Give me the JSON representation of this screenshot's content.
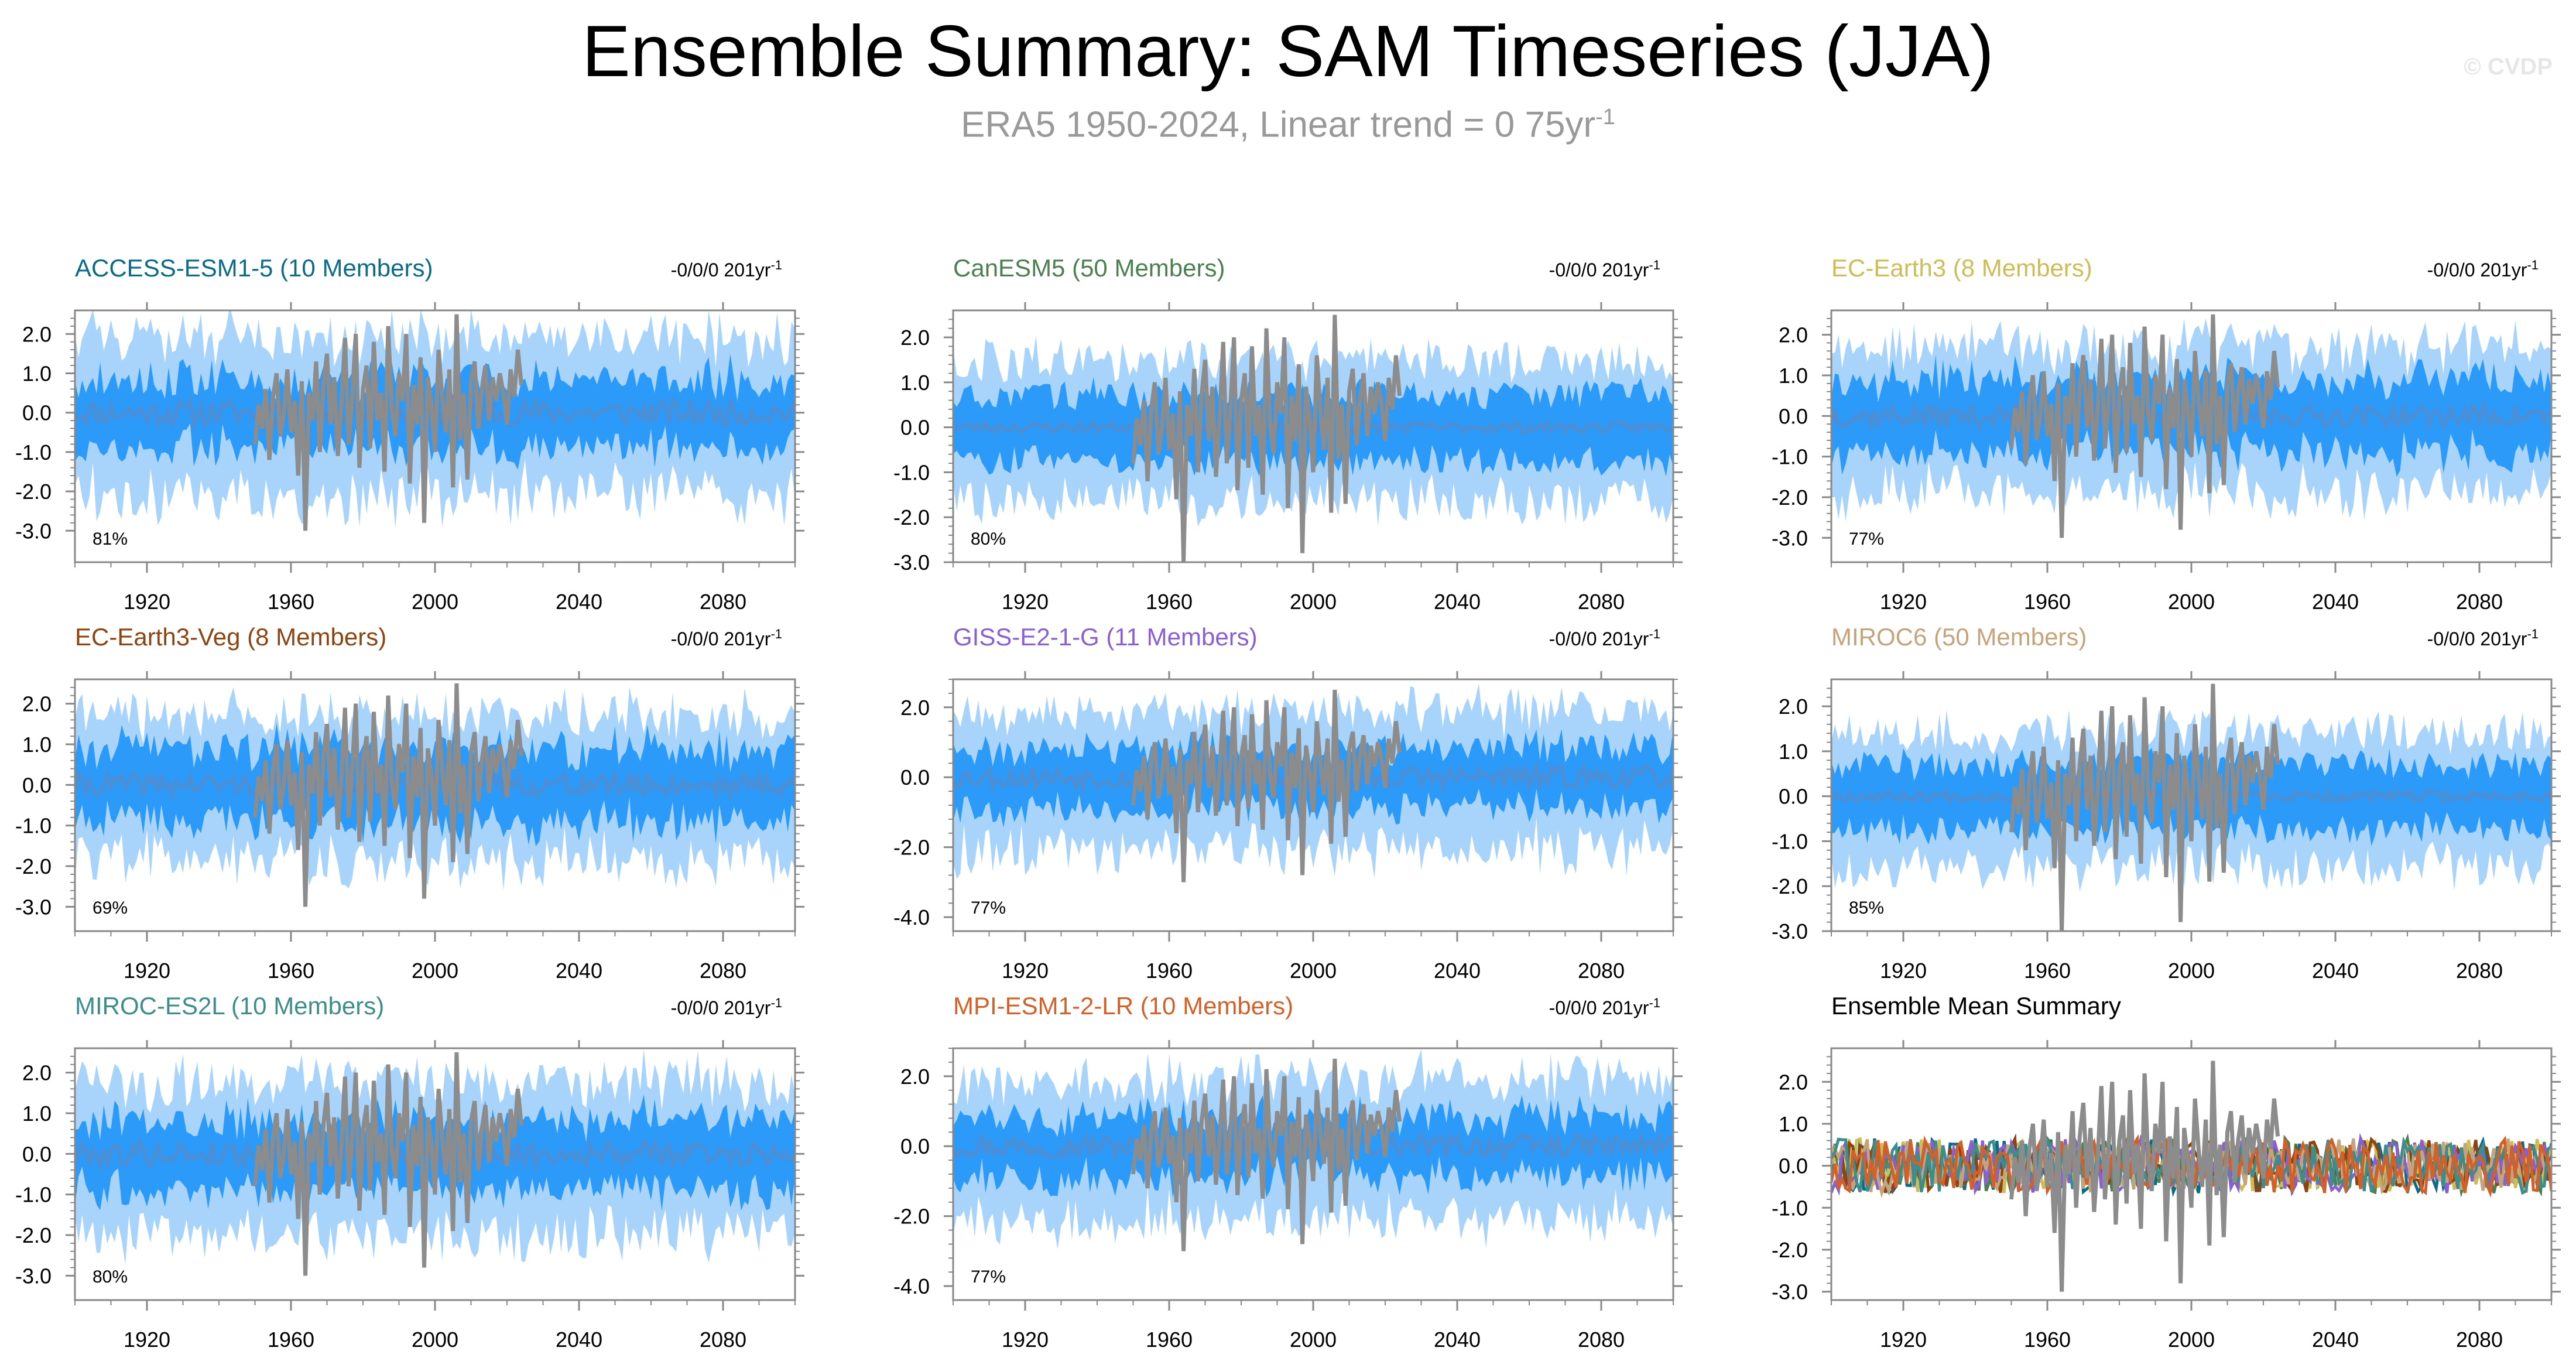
{
  "title": "Ensemble Summary: SAM Timeseries (JJA)",
  "subtitle": {
    "prefix": "ERA5 1950-2024, Linear trend = 0 75yr",
    "exponent": "-1"
  },
  "watermark": "© CVDP",
  "colors": {
    "outer_band": "#a8d4fb",
    "inner_band": "#2b9af8",
    "ensemble_mean_line": "#4a90d9",
    "observed_line": "#8c8c8c",
    "axis": "#888888"
  },
  "chart_data": [
    {
      "type": "line",
      "title": "ACCESS-ESM1-5 (10 Members)",
      "title_color": "#0c6b86",
      "trend_label": "-0/0/0 201yr",
      "trend_exponent": "-1",
      "percent_label": "81%",
      "x_range": [
        1900,
        2100
      ],
      "x_ticks": [
        "1920",
        "1960",
        "2000",
        "2040",
        "2080"
      ],
      "x_tick_values": [
        1920,
        1960,
        2000,
        2040,
        2080
      ],
      "ylim": [
        -3.8,
        2.6
      ],
      "y_ticks": [
        "2.0",
        "1.0",
        "0.0",
        "-1.0",
        "-2.0",
        "-3.0"
      ],
      "y_tick_values": [
        2.0,
        1.0,
        0.0,
        -1.0,
        -2.0,
        -3.0
      ],
      "outer_half_width": 1.9,
      "inner_half_width": 0.85,
      "noise_amplitude": 0.7,
      "seed": 11,
      "series": [
        "Ensemble 10-90% range",
        "Ensemble 25-75% range",
        "Ensemble mean",
        "ERA5"
      ]
    },
    {
      "type": "line",
      "title": "CanESM5 (50 Members)",
      "title_color": "#4d8050",
      "trend_label": "-0/0/0 201yr",
      "trend_exponent": "-1",
      "percent_label": "80%",
      "x_range": [
        1900,
        2100
      ],
      "x_ticks": [
        "1920",
        "1960",
        "2000",
        "2040",
        "2080"
      ],
      "x_tick_values": [
        1920,
        1960,
        2000,
        2040,
        2080
      ],
      "ylim": [
        -3.0,
        2.6
      ],
      "y_ticks": [
        "2.0",
        "1.0",
        "0.0",
        "-1.0",
        "-2.0",
        "-3.0"
      ],
      "y_tick_values": [
        2.0,
        1.0,
        0.0,
        -1.0,
        -2.0,
        -3.0
      ],
      "outer_half_width": 1.5,
      "inner_half_width": 0.75,
      "noise_amplitude": 0.25,
      "seed": 23,
      "series": [
        "Ensemble 10-90% range",
        "Ensemble 25-75% range",
        "Ensemble mean",
        "ERA5"
      ]
    },
    {
      "type": "line",
      "title": "EC-Earth3 (8 Members)",
      "title_color": "#cdbd58",
      "trend_label": "-0/0/0 201yr",
      "trend_exponent": "-1",
      "percent_label": "77%",
      "x_range": [
        1900,
        2100
      ],
      "x_ticks": [
        "1920",
        "1960",
        "2000",
        "2040",
        "2080"
      ],
      "x_tick_values": [
        1920,
        1960,
        2000,
        2040,
        2080
      ],
      "ylim": [
        -3.6,
        2.6
      ],
      "y_ticks": [
        "2.0",
        "1.0",
        "0.0",
        "-1.0",
        "-2.0",
        "-3.0"
      ],
      "y_tick_values": [
        2.0,
        1.0,
        0.0,
        -1.0,
        -2.0,
        -3.0
      ],
      "outer_half_width": 1.7,
      "inner_half_width": 0.9,
      "noise_amplitude": 0.6,
      "seed": 37,
      "series": [
        "Ensemble 10-90% range",
        "Ensemble 25-75% range",
        "Ensemble mean",
        "ERA5"
      ]
    },
    {
      "type": "line",
      "title": "EC-Earth3-Veg (8 Members)",
      "title_color": "#8b4513",
      "trend_label": "-0/0/0 201yr",
      "trend_exponent": "-1",
      "percent_label": "69%",
      "x_range": [
        1900,
        2100
      ],
      "x_ticks": [
        "1920",
        "1960",
        "2000",
        "2040",
        "2080"
      ],
      "x_tick_values": [
        1920,
        1960,
        2000,
        2040,
        2080
      ],
      "ylim": [
        -3.6,
        2.6
      ],
      "y_ticks": [
        "2.0",
        "1.0",
        "0.0",
        "-1.0",
        "-2.0",
        "-3.0"
      ],
      "y_tick_values": [
        2.0,
        1.0,
        0.0,
        -1.0,
        -2.0,
        -3.0
      ],
      "outer_half_width": 1.7,
      "inner_half_width": 0.9,
      "noise_amplitude": 0.6,
      "seed": 41,
      "series": [
        "Ensemble 10-90% range",
        "Ensemble 25-75% range",
        "Ensemble mean",
        "ERA5"
      ]
    },
    {
      "type": "line",
      "title": "GISS-E2-1-G (11 Members)",
      "title_color": "#8a5fd0",
      "trend_label": "-0/0/0 201yr",
      "trend_exponent": "-1",
      "percent_label": "77%",
      "x_range": [
        1900,
        2100
      ],
      "x_ticks": [
        "1920",
        "1960",
        "2000",
        "2040",
        "2080"
      ],
      "x_tick_values": [
        1920,
        1960,
        2000,
        2040,
        2080
      ],
      "ylim": [
        -4.4,
        2.8
      ],
      "y_ticks": [
        "2.0",
        "0.0",
        "-2.0",
        "-4.0"
      ],
      "y_tick_values": [
        2.0,
        0.0,
        -2.0,
        -4.0
      ],
      "outer_half_width": 1.9,
      "inner_half_width": 0.85,
      "noise_amplitude": 0.7,
      "seed": 53,
      "series": [
        "Ensemble 10-90% range",
        "Ensemble 25-75% range",
        "Ensemble mean",
        "ERA5"
      ]
    },
    {
      "type": "line",
      "title": "MIROC6 (50 Members)",
      "title_color": "#c4a47c",
      "trend_label": "-0/0/0 201yr",
      "trend_exponent": "-1",
      "percent_label": "85%",
      "x_range": [
        1900,
        2100
      ],
      "x_ticks": [
        "1920",
        "1960",
        "2000",
        "2040",
        "2080"
      ],
      "x_tick_values": [
        1920,
        1960,
        2000,
        2040,
        2080
      ],
      "ylim": [
        -3.0,
        2.6
      ],
      "y_ticks": [
        "2.0",
        "1.0",
        "0.0",
        "-1.0",
        "-2.0",
        "-3.0"
      ],
      "y_tick_values": [
        2.0,
        1.0,
        0.0,
        -1.0,
        -2.0,
        -3.0
      ],
      "outer_half_width": 1.45,
      "inner_half_width": 0.72,
      "noise_amplitude": 0.25,
      "seed": 67,
      "series": [
        "Ensemble 10-90% range",
        "Ensemble 25-75% range",
        "Ensemble mean",
        "ERA5"
      ]
    },
    {
      "type": "line",
      "title": "MIROC-ES2L (10 Members)",
      "title_color": "#3f8c8c",
      "trend_label": "-0/0/0 201yr",
      "trend_exponent": "-1",
      "percent_label": "80%",
      "x_range": [
        1900,
        2100
      ],
      "x_ticks": [
        "1920",
        "1960",
        "2000",
        "2040",
        "2080"
      ],
      "x_tick_values": [
        1920,
        1960,
        2000,
        2040,
        2080
      ],
      "ylim": [
        -3.6,
        2.6
      ],
      "y_ticks": [
        "2.0",
        "1.0",
        "0.0",
        "-1.0",
        "-2.0",
        "-3.0"
      ],
      "y_tick_values": [
        2.0,
        1.0,
        0.0,
        -1.0,
        -2.0,
        -3.0
      ],
      "outer_half_width": 1.8,
      "inner_half_width": 0.85,
      "noise_amplitude": 0.65,
      "seed": 79,
      "series": [
        "Ensemble 10-90% range",
        "Ensemble 25-75% range",
        "Ensemble mean",
        "ERA5"
      ]
    },
    {
      "type": "line",
      "title": "MPI-ESM1-2-LR (10 Members)",
      "title_color": "#d2602a",
      "trend_label": "-0/0/0 201yr",
      "trend_exponent": "-1",
      "percent_label": "77%",
      "x_range": [
        1900,
        2100
      ],
      "x_ticks": [
        "1920",
        "1960",
        "2000",
        "2040",
        "2080"
      ],
      "x_tick_values": [
        1920,
        1960,
        2000,
        2040,
        2080
      ],
      "ylim": [
        -4.4,
        2.8
      ],
      "y_ticks": [
        "2.0",
        "0.0",
        "-2.0",
        "-4.0"
      ],
      "y_tick_values": [
        2.0,
        0.0,
        -2.0,
        -4.0
      ],
      "outer_half_width": 1.9,
      "inner_half_width": 0.85,
      "noise_amplitude": 0.7,
      "seed": 97,
      "series": [
        "Ensemble 10-90% range",
        "Ensemble 25-75% range",
        "Ensemble mean",
        "ERA5"
      ]
    },
    {
      "type": "line",
      "title": "Ensemble Mean Summary",
      "title_color": "#000000",
      "trend_label": "",
      "trend_exponent": "",
      "percent_label": "",
      "x_range": [
        1900,
        2100
      ],
      "x_ticks": [
        "1920",
        "1960",
        "2000",
        "2040",
        "2080"
      ],
      "x_tick_values": [
        1920,
        1960,
        2000,
        2040,
        2080
      ],
      "ylim": [
        -3.2,
        2.8
      ],
      "y_ticks": [
        "2.0",
        "1.0",
        "0.0",
        "-1.0",
        "-2.0",
        "-3.0"
      ],
      "y_tick_values": [
        2.0,
        1.0,
        0.0,
        -1.0,
        -2.0,
        -3.0
      ],
      "summary": true,
      "seed": 113,
      "series": [
        {
          "name": "ACCESS-ESM1-5",
          "color": "#0c6b86"
        },
        {
          "name": "CanESM5",
          "color": "#4d8050"
        },
        {
          "name": "EC-Earth3",
          "color": "#cdbd58"
        },
        {
          "name": "EC-Earth3-Veg",
          "color": "#8b4513"
        },
        {
          "name": "GISS-E2-1-G",
          "color": "#8a5fd0"
        },
        {
          "name": "MIROC6",
          "color": "#c4a47c"
        },
        {
          "name": "MIROC-ES2L",
          "color": "#3f8c8c"
        },
        {
          "name": "MPI-ESM1-2-LR",
          "color": "#d2602a"
        },
        {
          "name": "ERA5",
          "color": "#8c8c8c"
        }
      ]
    }
  ],
  "era5_observed": {
    "start_year": 1950,
    "values": [
      -0.8,
      0.2,
      -0.4,
      0.6,
      -1.2,
      0.4,
      1.0,
      -0.6,
      0.0,
      1.1,
      -0.5,
      0.3,
      -1.6,
      0.8,
      -3.0,
      0.5,
      -0.2,
      1.3,
      -1.0,
      0.7,
      1.5,
      -0.3,
      0.9,
      -1.1,
      0.2,
      1.9,
      -0.8,
      0.4,
      2.0,
      -1.4,
      0.6,
      1.2,
      -0.9,
      1.8,
      -0.2,
      0.5,
      -1.5,
      2.2,
      0.1,
      -0.6,
      1.0,
      0.3,
      2.0,
      -1.8,
      0.7,
      -0.3,
      1.4,
      -2.8,
      0.9,
      0.2,
      -1.0,
      1.6,
      0.4,
      -0.5,
      1.1,
      -1.9,
      2.5,
      -0.7,
      0.5,
      -1.7,
      0.8,
      1.3,
      -0.4,
      0.6,
      1.2,
      -0.2,
      0.9,
      0.3,
      1.0,
      0.5,
      -0.3,
      1.1,
      0.4,
      1.6,
      0.7
    ]
  }
}
